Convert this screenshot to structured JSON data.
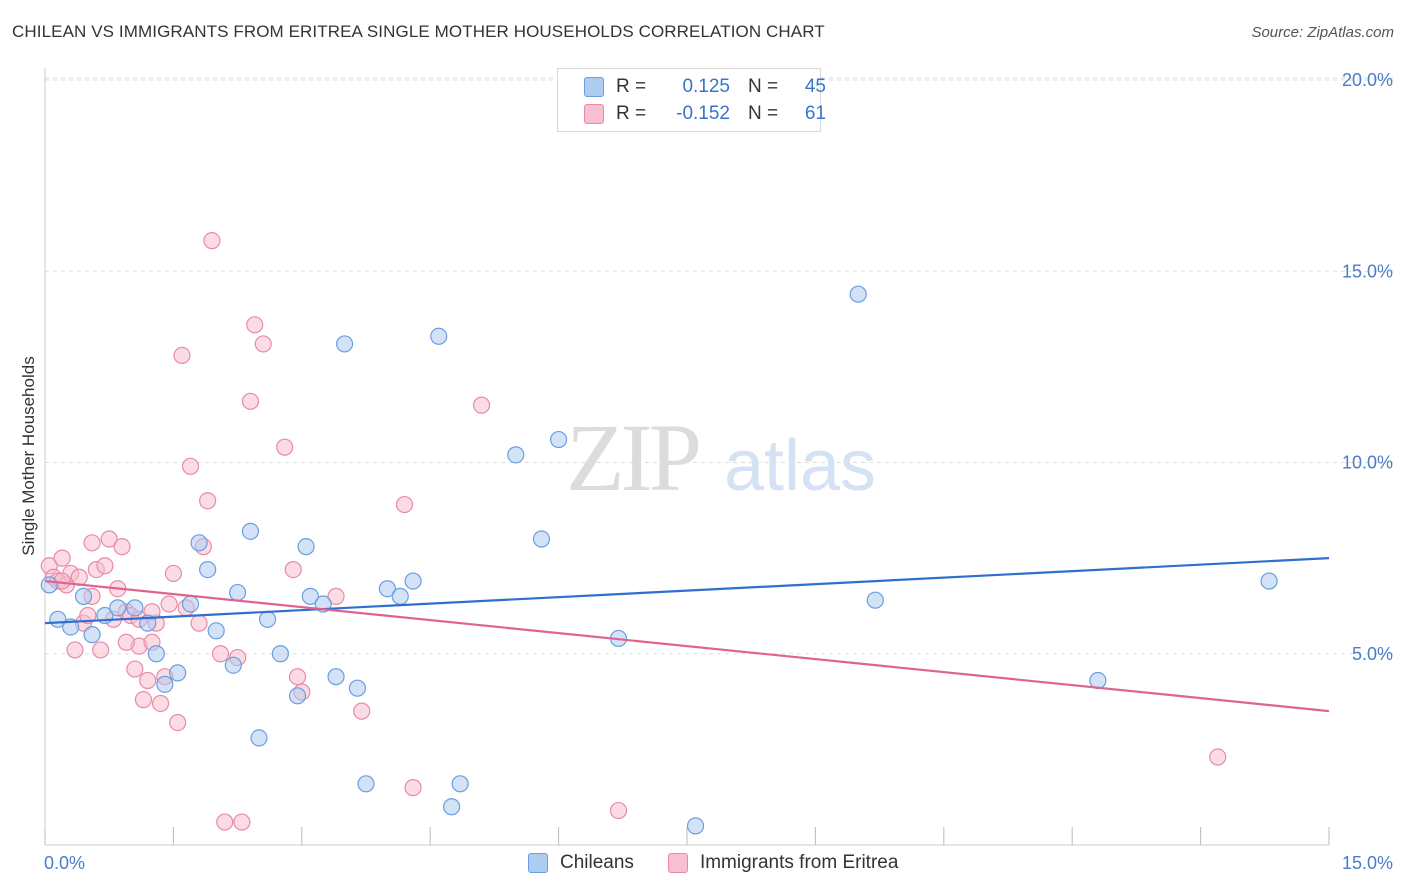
{
  "header": {
    "title": "CHILEAN VS IMMIGRANTS FROM ERITREA SINGLE MOTHER HOUSEHOLDS CORRELATION CHART",
    "source": "Source: ZipAtlas.com"
  },
  "watermark": {
    "zip": "ZIP",
    "atlas": "atlas"
  },
  "legend_top": {
    "rows": [
      {
        "r_label": "R = ",
        "r_value": "0.125",
        "n_label": "N = ",
        "n_value": "45"
      },
      {
        "r_label": "R = ",
        "r_value": "-0.152",
        "n_label": "N = ",
        "n_value": "61"
      }
    ]
  },
  "legend_bottom": {
    "items": [
      "Chileans",
      "Immigrants from Eritrea"
    ]
  },
  "colors": {
    "blue_fill": "#aecbf0",
    "blue_stroke": "#6a9ee0",
    "blue_line": "#2f6fcf",
    "pink_fill": "#f7bfd0",
    "pink_stroke": "#e98aa8",
    "pink_line": "#e0638f",
    "grid": "#dddddd",
    "tick_text": "#4a7cc9"
  },
  "chart_data": {
    "type": "scatter",
    "title": "CHILEAN VS IMMIGRANTS FROM ERITREA SINGLE MOTHER HOUSEHOLDS CORRELATION CHART",
    "xlabel": "",
    "ylabel": "Single Mother Households",
    "xlim": [
      0,
      15
    ],
    "ylim": [
      0,
      20
    ],
    "x_tick_labels": [
      "0.0%",
      "15.0%"
    ],
    "y_ticks": [
      5,
      10,
      15,
      20
    ],
    "y_tick_labels": [
      "5.0%",
      "10.0%",
      "15.0%",
      "20.0%"
    ],
    "grid": true,
    "legend_placement": "top-center",
    "series": [
      {
        "name": "Chileans",
        "color": "#6a9ee0",
        "r": 0.125,
        "n": 45,
        "trend": [
          [
            0,
            5.8
          ],
          [
            15,
            7.5
          ]
        ],
        "points": [
          [
            0.05,
            6.8
          ],
          [
            0.15,
            5.9
          ],
          [
            0.3,
            5.7
          ],
          [
            0.55,
            5.5
          ],
          [
            0.7,
            6.0
          ],
          [
            0.85,
            6.2
          ],
          [
            1.05,
            6.2
          ],
          [
            1.2,
            5.8
          ],
          [
            1.3,
            5.0
          ],
          [
            1.4,
            4.2
          ],
          [
            1.55,
            4.5
          ],
          [
            1.7,
            6.3
          ],
          [
            1.8,
            7.9
          ],
          [
            1.9,
            7.2
          ],
          [
            2.0,
            5.6
          ],
          [
            2.2,
            4.7
          ],
          [
            2.25,
            6.6
          ],
          [
            2.4,
            8.2
          ],
          [
            2.5,
            2.8
          ],
          [
            2.75,
            5.0
          ],
          [
            2.95,
            3.9
          ],
          [
            3.05,
            7.8
          ],
          [
            3.1,
            6.5
          ],
          [
            3.25,
            6.3
          ],
          [
            3.4,
            4.4
          ],
          [
            3.5,
            13.1
          ],
          [
            3.65,
            4.1
          ],
          [
            3.75,
            1.6
          ],
          [
            4.0,
            6.7
          ],
          [
            4.15,
            6.5
          ],
          [
            4.3,
            6.9
          ],
          [
            4.6,
            13.3
          ],
          [
            4.75,
            1.0
          ],
          [
            4.85,
            1.6
          ],
          [
            5.5,
            10.2
          ],
          [
            5.8,
            8.0
          ],
          [
            6.0,
            10.6
          ],
          [
            6.7,
            5.4
          ],
          [
            7.6,
            0.5
          ],
          [
            9.5,
            14.4
          ],
          [
            9.7,
            6.4
          ],
          [
            12.3,
            4.3
          ],
          [
            14.3,
            6.9
          ],
          [
            0.45,
            6.5
          ],
          [
            2.6,
            5.9
          ]
        ]
      },
      {
        "name": "Immigrants from Eritrea",
        "color": "#e98aa8",
        "r": -0.152,
        "n": 61,
        "trend": [
          [
            0,
            6.9
          ],
          [
            15,
            3.5
          ]
        ],
        "points": [
          [
            0.05,
            7.3
          ],
          [
            0.1,
            7.0
          ],
          [
            0.15,
            6.9
          ],
          [
            0.2,
            7.5
          ],
          [
            0.25,
            6.8
          ],
          [
            0.3,
            7.1
          ],
          [
            0.35,
            5.1
          ],
          [
            0.4,
            7.0
          ],
          [
            0.45,
            5.8
          ],
          [
            0.55,
            6.5
          ],
          [
            0.55,
            7.9
          ],
          [
            0.6,
            7.2
          ],
          [
            0.65,
            5.1
          ],
          [
            0.7,
            7.3
          ],
          [
            0.75,
            8.0
          ],
          [
            0.8,
            5.9
          ],
          [
            0.85,
            6.7
          ],
          [
            0.9,
            7.8
          ],
          [
            0.95,
            6.1
          ],
          [
            1.0,
            6.0
          ],
          [
            1.05,
            4.6
          ],
          [
            1.1,
            5.2
          ],
          [
            1.15,
            3.8
          ],
          [
            1.2,
            4.3
          ],
          [
            1.25,
            5.3
          ],
          [
            1.3,
            5.8
          ],
          [
            1.35,
            3.7
          ],
          [
            1.4,
            4.4
          ],
          [
            1.5,
            7.1
          ],
          [
            1.55,
            3.2
          ],
          [
            1.6,
            12.8
          ],
          [
            1.7,
            9.9
          ],
          [
            1.8,
            5.8
          ],
          [
            1.85,
            7.8
          ],
          [
            1.9,
            9.0
          ],
          [
            1.95,
            15.8
          ],
          [
            2.1,
            0.6
          ],
          [
            2.25,
            4.9
          ],
          [
            2.3,
            0.6
          ],
          [
            2.4,
            11.6
          ],
          [
            2.45,
            13.6
          ],
          [
            2.55,
            13.1
          ],
          [
            2.8,
            10.4
          ],
          [
            2.9,
            7.2
          ],
          [
            2.95,
            4.4
          ],
          [
            3.0,
            4.0
          ],
          [
            3.4,
            6.5
          ],
          [
            3.7,
            3.5
          ],
          [
            4.2,
            8.9
          ],
          [
            4.3,
            1.5
          ],
          [
            5.1,
            11.5
          ],
          [
            6.7,
            0.9
          ],
          [
            13.7,
            2.3
          ],
          [
            1.45,
            6.3
          ],
          [
            0.95,
            5.3
          ],
          [
            1.25,
            6.1
          ],
          [
            0.5,
            6.0
          ],
          [
            1.1,
            5.9
          ],
          [
            1.65,
            6.2
          ],
          [
            2.05,
            5.0
          ],
          [
            0.2,
            6.9
          ]
        ]
      }
    ]
  }
}
